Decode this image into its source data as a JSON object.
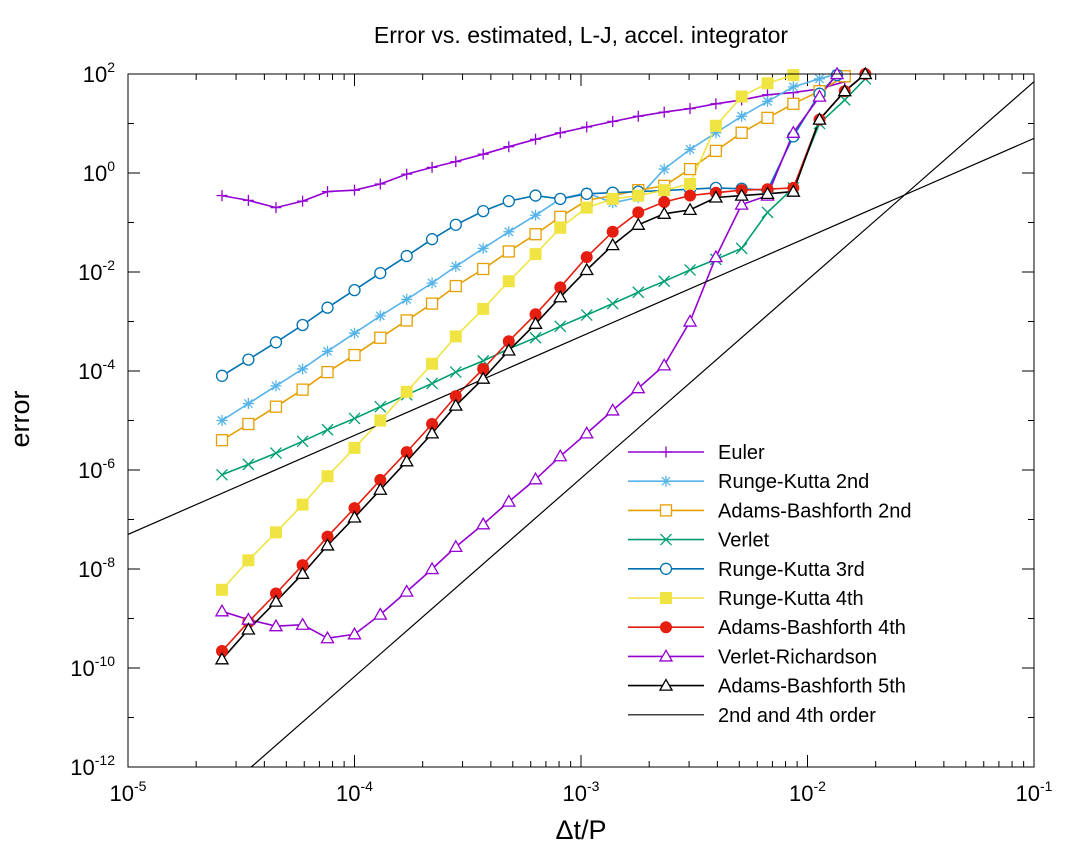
{
  "chart_data": {
    "type": "line",
    "title": "Error vs. estimated, L-J, accel. integrator",
    "xlabel": "Δt/P",
    "ylabel": "error",
    "xscale": "log",
    "yscale": "log",
    "xlim": [
      1e-05,
      0.1
    ],
    "ylim": [
      1e-12,
      100
    ],
    "grid": false,
    "legend_position": "bottom-right",
    "x_ticks": [
      {
        "base": "10",
        "exp": "-5",
        "value": 1e-05
      },
      {
        "base": "10",
        "exp": "-4",
        "value": 0.0001
      },
      {
        "base": "10",
        "exp": "-3",
        "value": 0.001
      },
      {
        "base": "10",
        "exp": "-2",
        "value": 0.01
      },
      {
        "base": "10",
        "exp": "-1",
        "value": 0.1
      }
    ],
    "y_ticks": [
      {
        "base": "10",
        "exp": "-12",
        "value": 1e-12
      },
      {
        "base": "10",
        "exp": "-10",
        "value": 1e-10
      },
      {
        "base": "10",
        "exp": "-8",
        "value": 1e-08
      },
      {
        "base": "10",
        "exp": "-6",
        "value": 1e-06
      },
      {
        "base": "10",
        "exp": "-4",
        "value": 0.0001
      },
      {
        "base": "10",
        "exp": "-2",
        "value": 0.01
      },
      {
        "base": "10",
        "exp": "0",
        "value": 1
      },
      {
        "base": "10",
        "exp": "2",
        "value": 100
      }
    ],
    "series": [
      {
        "name": "Euler",
        "color": "#9400d3",
        "marker": "plus",
        "x": [
          2.6e-05,
          3.4e-05,
          4.5e-05,
          5.9e-05,
          7.6e-05,
          0.0001,
          0.00013,
          0.00017,
          0.00022,
          0.00028,
          0.00037,
          0.00048,
          0.00063,
          0.00081,
          0.00106,
          0.00138,
          0.00179,
          0.00233,
          0.00303,
          0.00394,
          0.00512,
          0.00666,
          0.00866,
          0.0113,
          0.0146
        ],
        "y": [
          0.35,
          0.28,
          0.2,
          0.27,
          0.42,
          0.45,
          0.6,
          0.95,
          1.3,
          1.7,
          2.4,
          3.4,
          4.8,
          6.5,
          8.5,
          11,
          14,
          17,
          20,
          25,
          30,
          38,
          42,
          50,
          70
        ]
      },
      {
        "name": "Runge-Kutta 2nd",
        "color": "#56b4e9",
        "marker": "star",
        "x": [
          2.6e-05,
          3.4e-05,
          4.5e-05,
          5.9e-05,
          7.6e-05,
          0.0001,
          0.00013,
          0.00017,
          0.00022,
          0.00028,
          0.00037,
          0.00048,
          0.00063,
          0.00081,
          0.00106,
          0.00138,
          0.00179,
          0.00233,
          0.00303,
          0.00394,
          0.00512,
          0.00666,
          0.00866,
          0.0113,
          0.0135
        ],
        "y": [
          1e-05,
          2.2e-05,
          5e-05,
          0.00011,
          0.00025,
          0.00058,
          0.0013,
          0.0028,
          0.006,
          0.013,
          0.03,
          0.065,
          0.14,
          0.3,
          0.4,
          0.25,
          0.32,
          1.2,
          3,
          6.5,
          14,
          28,
          55,
          80,
          100
        ]
      },
      {
        "name": "Adams-Bashforth 2nd",
        "color": "#e69f00",
        "marker": "square-open",
        "x": [
          2.6e-05,
          3.4e-05,
          4.5e-05,
          5.9e-05,
          7.6e-05,
          0.0001,
          0.00013,
          0.00017,
          0.00022,
          0.00028,
          0.00037,
          0.00048,
          0.00063,
          0.00081,
          0.00106,
          0.00138,
          0.00179,
          0.00233,
          0.00303,
          0.00394,
          0.00512,
          0.00666,
          0.00866,
          0.0113,
          0.0146
        ],
        "y": [
          4e-06,
          8.5e-06,
          1.9e-05,
          4.2e-05,
          9.5e-05,
          0.00021,
          0.00047,
          0.00105,
          0.0023,
          0.0052,
          0.0115,
          0.026,
          0.058,
          0.13,
          0.28,
          0.35,
          0.45,
          0.55,
          1.2,
          2.8,
          6.5,
          13,
          25,
          45,
          90
        ]
      },
      {
        "name": "Verlet",
        "color": "#009e73",
        "marker": "cross",
        "x": [
          2.6e-05,
          3.4e-05,
          4.5e-05,
          5.9e-05,
          7.6e-05,
          0.0001,
          0.00013,
          0.00017,
          0.00022,
          0.00028,
          0.00037,
          0.00048,
          0.00063,
          0.00081,
          0.00106,
          0.00138,
          0.00179,
          0.00233,
          0.00303,
          0.00394,
          0.00512,
          0.00666,
          0.00866,
          0.0113,
          0.0146,
          0.018
        ],
        "y": [
          8e-07,
          1.3e-06,
          2.2e-06,
          3.8e-06,
          6.5e-06,
          1.1e-05,
          1.9e-05,
          3.3e-05,
          5.6e-05,
          9.5e-05,
          0.00016,
          0.00028,
          0.00047,
          0.0008,
          0.00135,
          0.0023,
          0.0039,
          0.0065,
          0.011,
          0.018,
          0.03,
          0.16,
          0.5,
          10,
          30,
          80
        ]
      },
      {
        "name": "Runge-Kutta 3rd",
        "color": "#0072b2",
        "marker": "circle-open",
        "x": [
          2.6e-05,
          3.4e-05,
          4.5e-05,
          5.9e-05,
          7.6e-05,
          0.0001,
          0.00013,
          0.00017,
          0.00022,
          0.00028,
          0.00037,
          0.00048,
          0.00063,
          0.00081,
          0.00106,
          0.00138,
          0.00179,
          0.00233,
          0.00303,
          0.00394,
          0.00512,
          0.00666,
          0.00866,
          0.0113,
          0.0135
        ],
        "y": [
          8e-05,
          0.00017,
          0.00038,
          0.00085,
          0.0019,
          0.0043,
          0.0095,
          0.021,
          0.046,
          0.09,
          0.17,
          0.27,
          0.35,
          0.3,
          0.38,
          0.4,
          0.42,
          0.44,
          0.47,
          0.5,
          0.48,
          0.45,
          5.5,
          40,
          95
        ]
      },
      {
        "name": "Runge-Kutta 4th",
        "color": "#f0e442",
        "marker": "square-filled",
        "x": [
          2.6e-05,
          3.4e-05,
          4.5e-05,
          5.9e-05,
          7.6e-05,
          0.0001,
          0.00013,
          0.00017,
          0.00022,
          0.00028,
          0.00037,
          0.00048,
          0.00063,
          0.00081,
          0.00106,
          0.00138,
          0.00179,
          0.00233,
          0.00303,
          0.00394,
          0.00512,
          0.00666,
          0.00866
        ],
        "y": [
          3.8e-09,
          1.5e-08,
          5.5e-08,
          2e-07,
          7.5e-07,
          2.8e-06,
          1e-05,
          3.8e-05,
          0.00014,
          0.0005,
          0.0018,
          0.0065,
          0.023,
          0.078,
          0.2,
          0.3,
          0.35,
          0.45,
          0.6,
          9,
          35,
          65,
          95
        ]
      },
      {
        "name": "Adams-Bashforth 4th",
        "color": "#e51e10",
        "marker": "circle-filled",
        "x": [
          2.6e-05,
          3.4e-05,
          4.5e-05,
          5.9e-05,
          7.6e-05,
          0.0001,
          0.00013,
          0.00017,
          0.00022,
          0.00028,
          0.00037,
          0.00048,
          0.00063,
          0.00081,
          0.00106,
          0.00138,
          0.00179,
          0.00233,
          0.00303,
          0.00394,
          0.00512,
          0.00666,
          0.00866,
          0.0113,
          0.0146,
          0.018
        ],
        "y": [
          2.2e-10,
          8.5e-10,
          3.2e-09,
          1.2e-08,
          4.5e-08,
          1.7e-07,
          6.3e-07,
          2.3e-06,
          8.5e-06,
          3.1e-05,
          0.00011,
          0.0004,
          0.0014,
          0.0049,
          0.02,
          0.065,
          0.16,
          0.26,
          0.35,
          0.4,
          0.45,
          0.47,
          0.5,
          12,
          45,
          100
        ]
      },
      {
        "name": "Verlet-Richardson",
        "color": "#9400d3",
        "marker": "triangle-open",
        "x": [
          2.6e-05,
          3.4e-05,
          4.5e-05,
          5.9e-05,
          7.6e-05,
          0.0001,
          0.00013,
          0.00017,
          0.00022,
          0.00028,
          0.00037,
          0.00048,
          0.00063,
          0.00081,
          0.00106,
          0.00138,
          0.00179,
          0.00233,
          0.00303,
          0.00394,
          0.00512,
          0.00666,
          0.00866,
          0.0113,
          0.0135
        ],
        "y": [
          1.4e-09,
          9.5e-10,
          7e-10,
          7.5e-10,
          4e-10,
          4.8e-10,
          1.2e-09,
          3.5e-09,
          1e-08,
          2.8e-08,
          8e-08,
          2.3e-07,
          6.5e-07,
          1.9e-06,
          5.5e-06,
          1.6e-05,
          4.5e-05,
          0.00013,
          0.001,
          0.02,
          0.23,
          0.35,
          6.5,
          35,
          100
        ]
      },
      {
        "name": "Adams-Bashforth 5th",
        "color": "#000000",
        "marker": "triangle-open",
        "x": [
          2.6e-05,
          3.4e-05,
          4.5e-05,
          5.9e-05,
          7.6e-05,
          0.0001,
          0.00013,
          0.00017,
          0.00022,
          0.00028,
          0.00037,
          0.00048,
          0.00063,
          0.00081,
          0.00106,
          0.00138,
          0.00179,
          0.00233,
          0.00303,
          0.00394,
          0.00512,
          0.00666,
          0.00866,
          0.0113,
          0.0146,
          0.018
        ],
        "y": [
          1.5e-10,
          6e-10,
          2.2e-09,
          8e-09,
          3e-08,
          1.1e-07,
          4e-07,
          1.5e-06,
          5.5e-06,
          2e-05,
          7e-05,
          0.00026,
          0.0009,
          0.0031,
          0.011,
          0.035,
          0.09,
          0.15,
          0.18,
          0.32,
          0.35,
          0.38,
          0.42,
          12,
          45,
          100
        ]
      },
      {
        "name": "2nd and 4th order",
        "color": "#000000",
        "marker": "none",
        "segments": [
          {
            "x": [
              1e-05,
              0.1
            ],
            "y": [
              5e-08,
              5
            ]
          },
          {
            "x": [
              3.5e-05,
              0.1
            ],
            "y": [
              1e-12,
              70
            ]
          }
        ]
      }
    ]
  }
}
